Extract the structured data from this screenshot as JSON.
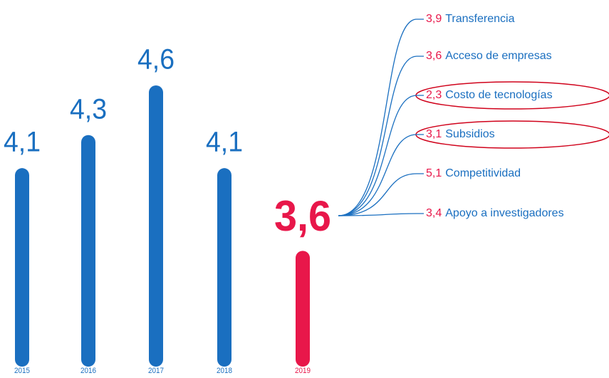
{
  "chart_data": {
    "type": "bar",
    "categories": [
      "2015",
      "2016",
      "2017",
      "2018",
      "2019"
    ],
    "values": [
      4.1,
      4.3,
      4.6,
      4.1,
      3.6
    ],
    "value_labels": [
      "4,1",
      "4,3",
      "4,6",
      "4,1",
      "3,6"
    ],
    "colors": [
      "#1a6fc0",
      "#1a6fc0",
      "#1a6fc0",
      "#1a6fc0",
      "#e8174a"
    ],
    "ylim": [
      2.9,
      4.6
    ],
    "breakdown": {
      "values": [
        3.9,
        3.6,
        2.3,
        3.1,
        5.1,
        3.4
      ],
      "value_labels": [
        "3,9",
        "3,6",
        "2,3",
        "3,1",
        "5,1",
        "3,4"
      ],
      "labels": [
        "Transferencia",
        "Acceso de empresas",
        "Costo de tecnologías",
        "Subsidios",
        "Competitividad",
        "Apoyo a investigadores"
      ],
      "value_color": "#e8174a",
      "label_color": "#1a6fc0"
    }
  }
}
